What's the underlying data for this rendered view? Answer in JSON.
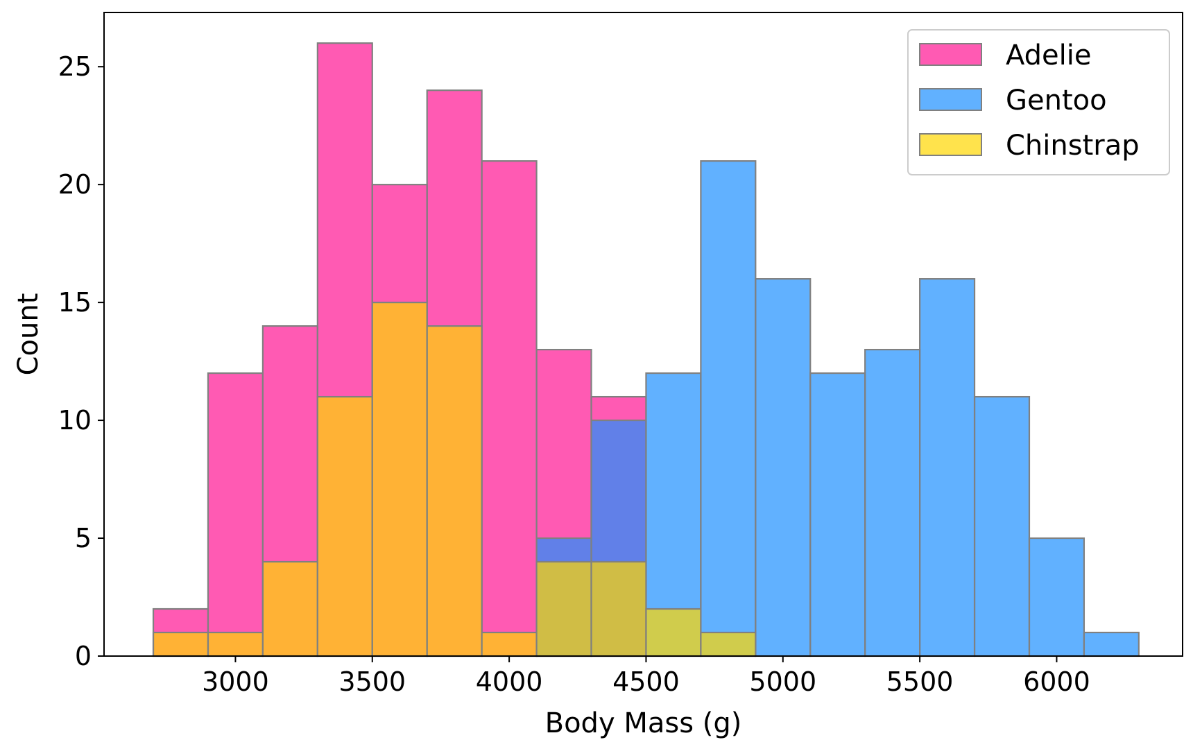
{
  "chart_data": {
    "type": "bar",
    "subtype": "overlapping-histogram",
    "title": "",
    "xlabel": "Body Mass (g)",
    "ylabel": "Count",
    "xlim": [
      2520,
      6460
    ],
    "ylim": [
      0,
      27.3
    ],
    "bin_edges": [
      2700,
      2900,
      3100,
      3300,
      3500,
      3700,
      3900,
      4100,
      4300,
      4500,
      4700,
      4900,
      5100,
      5300,
      5500,
      5700,
      5900,
      6100,
      6300
    ],
    "x_ticks": [
      3000,
      3500,
      4000,
      4500,
      5000,
      5500,
      6000
    ],
    "y_ticks": [
      0,
      5,
      10,
      15,
      20,
      25
    ],
    "grid": false,
    "legend_position": "top-right",
    "bar_opacity": 0.7,
    "edge_color": "#808080",
    "series": [
      {
        "name": "Adelie",
        "color": "#ff1493",
        "counts": [
          2,
          12,
          14,
          26,
          20,
          24,
          21,
          13,
          11,
          0,
          0,
          0,
          0,
          0,
          0,
          0,
          0,
          0
        ]
      },
      {
        "name": "Gentoo",
        "color": "#1e90ff",
        "counts": [
          0,
          0,
          0,
          0,
          0,
          0,
          0,
          5,
          10,
          12,
          21,
          16,
          12,
          13,
          16,
          11,
          5,
          1
        ]
      },
      {
        "name": "Chinstrap",
        "color": "#ffd700",
        "counts": [
          1,
          1,
          4,
          11,
          15,
          14,
          1,
          4,
          4,
          2,
          1,
          0,
          0,
          0,
          0,
          0,
          0,
          0
        ]
      }
    ]
  }
}
